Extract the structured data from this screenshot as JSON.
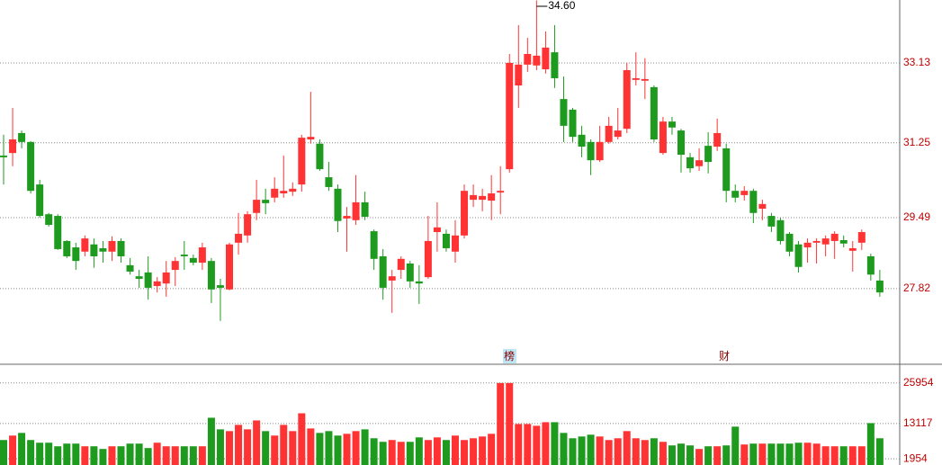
{
  "chart_data": [
    {
      "type": "candlestick",
      "up_color": "#ff3333",
      "down_color": "#1e9b1e",
      "ylim": [
        26.04,
        34.61
      ],
      "yticks": [
        27.82,
        29.49,
        31.25,
        33.13
      ],
      "grid": true,
      "annotations": [
        "34.60",
        "榜",
        "财"
      ],
      "open": [
        30.95,
        31.01,
        31.48,
        31.27,
        30.27,
        29.57,
        29.53,
        28.94,
        28.79,
        28.69,
        28.86,
        28.77,
        28.69,
        28.94,
        28.37,
        28.11,
        28.2,
        27.88,
        27.94,
        28.26,
        28.62,
        28.54,
        28.43,
        28.47,
        27.9,
        27.8,
        28.9,
        29.07,
        29.6,
        29.91,
        29.96,
        30.06,
        30.1,
        30.27,
        31.33,
        31.23,
        30.44,
        30.17,
        29.47,
        29.43,
        29.85,
        29.17,
        28.58,
        28.01,
        28.26,
        28.41,
        27.99,
        28.09,
        29.15,
        29.11,
        28.69,
        29.07,
        29.91,
        29.91,
        29.89,
        30.08,
        30.63,
        32.6,
        33.09,
        33.07,
        32.98,
        33.38,
        32.28,
        32.03,
        31.44,
        31.27,
        30.84,
        31.27,
        31.39,
        31.58,
        32.73,
        32.71,
        32.56,
        31.01,
        31.75,
        31.54,
        30.91,
        30.7,
        31.18,
        31.16,
        31.12,
        30.12,
        30.02,
        30.12,
        29.7,
        29.53,
        29.43,
        29.11,
        28.86,
        28.79,
        28.9,
        28.86,
        28.94,
        28.96,
        28.71,
        28.9,
        28.58,
        28.01
      ],
      "high": [
        31.44,
        32.07,
        31.54,
        31.29,
        30.38,
        29.6,
        29.57,
        28.96,
        28.9,
        29.07,
        29.0,
        28.94,
        29.05,
        29.0,
        28.54,
        28.26,
        28.58,
        28.09,
        28.47,
        28.56,
        28.94,
        28.62,
        28.9,
        28.54,
        28.05,
        28.9,
        29.6,
        29.64,
        30.38,
        30.17,
        30.44,
        30.95,
        30.32,
        31.44,
        32.45,
        31.33,
        30.8,
        30.27,
        29.74,
        30.49,
        30.1,
        29.21,
        28.75,
        28.26,
        28.58,
        28.47,
        28.37,
        29.53,
        29.85,
        29.21,
        29.43,
        30.27,
        30.27,
        30.17,
        30.49,
        30.7,
        33.34,
        34.02,
        33.72,
        34.6,
        33.87,
        34.02,
        32.81,
        32.07,
        31.65,
        31.33,
        31.65,
        31.86,
        32.07,
        33.13,
        33.38,
        33.24,
        32.6,
        31.86,
        31.86,
        31.58,
        31.01,
        31.12,
        31.5,
        31.82,
        31.23,
        30.27,
        30.23,
        30.17,
        29.91,
        29.6,
        29.49,
        29.15,
        28.94,
        29.0,
        29.0,
        29.07,
        29.17,
        29.07,
        28.94,
        29.21,
        28.64,
        28.26
      ],
      "low": [
        30.27,
        30.7,
        31.12,
        30.06,
        29.49,
        29.28,
        28.73,
        28.54,
        28.26,
        28.58,
        28.31,
        28.43,
        28.47,
        28.43,
        28.15,
        27.84,
        27.56,
        27.73,
        27.63,
        27.88,
        28.26,
        28.37,
        28.26,
        27.48,
        27.06,
        27.78,
        28.62,
        28.9,
        29.43,
        29.57,
        29.85,
        29.96,
        30.0,
        30.1,
        31.23,
        30.59,
        30.12,
        29.15,
        28.69,
        29.32,
        29.43,
        28.26,
        27.56,
        27.25,
        28.05,
        27.84,
        27.46,
        28.05,
        28.69,
        28.69,
        28.43,
        29.0,
        29.74,
        29.64,
        29.43,
        29.57,
        30.55,
        32.07,
        32.92,
        32.96,
        32.88,
        32.54,
        31.27,
        31.27,
        30.91,
        30.49,
        30.8,
        31.23,
        31.33,
        31.48,
        32.6,
        32.28,
        31.27,
        30.97,
        31.44,
        30.55,
        30.55,
        30.59,
        30.53,
        31.06,
        29.85,
        29.85,
        29.89,
        29.36,
        29.43,
        29.15,
        28.86,
        28.58,
        28.2,
        28.43,
        28.41,
        28.58,
        28.52,
        28.79,
        28.22,
        28.73,
        28.01,
        27.63
      ],
      "close": [
        30.91,
        31.33,
        31.27,
        30.12,
        29.53,
        29.32,
        28.75,
        28.58,
        28.47,
        29.0,
        28.58,
        28.69,
        28.94,
        28.58,
        28.22,
        28.05,
        27.84,
        27.99,
        28.2,
        28.47,
        28.58,
        28.43,
        28.79,
        27.8,
        27.84,
        28.86,
        29.11,
        29.57,
        29.91,
        29.83,
        30.17,
        30.12,
        30.17,
        31.37,
        31.39,
        30.63,
        30.21,
        29.41,
        29.53,
        29.85,
        29.51,
        28.52,
        27.84,
        28.11,
        28.52,
        27.99,
        27.94,
        28.94,
        29.26,
        28.77,
        29.07,
        30.12,
        30.02,
        30.0,
        30.06,
        30.12,
        33.13,
        33.09,
        33.34,
        33.3,
        33.49,
        32.77,
        31.65,
        31.39,
        31.16,
        30.84,
        31.27,
        31.65,
        31.54,
        32.96,
        32.77,
        32.75,
        31.33,
        31.75,
        31.61,
        30.97,
        30.65,
        30.84,
        30.8,
        31.48,
        30.12,
        29.96,
        30.12,
        29.6,
        29.81,
        29.28,
        28.94,
        28.69,
        28.33,
        28.9,
        28.94,
        29.0,
        29.11,
        28.88,
        28.77,
        29.15,
        28.15,
        27.73
      ]
    },
    {
      "type": "bar",
      "ylim": [
        0,
        31870
      ],
      "yticks": [
        1954,
        13117,
        25954
      ],
      "grid": true,
      "values": [
        7900,
        9310,
        10150,
        7900,
        7050,
        7050,
        5920,
        6770,
        6770,
        5920,
        5920,
        5080,
        5920,
        5920,
        6770,
        6770,
        5360,
        7050,
        5920,
        5920,
        5920,
        5920,
        5920,
        14950,
        11280,
        10720,
        12690,
        11280,
        14100,
        10720,
        9310,
        12690,
        10720,
        16360,
        11560,
        10150,
        10720,
        9310,
        9870,
        10720,
        11280,
        8460,
        7330,
        7900,
        7330,
        7330,
        8740,
        7900,
        8740,
        7900,
        9310,
        7900,
        8460,
        9020,
        9870,
        25940,
        25940,
        12970,
        12970,
        12410,
        13540,
        13540,
        10150,
        8460,
        9020,
        9590,
        9020,
        7900,
        8460,
        10720,
        8460,
        7900,
        8460,
        7330,
        6200,
        6770,
        6200,
        5080,
        5920,
        5920,
        6200,
        12130,
        6490,
        6770,
        6770,
        6770,
        6770,
        6770,
        7050,
        7050,
        6770,
        5920,
        5920,
        5920,
        5920,
        5920,
        13250,
        8460
      ]
    }
  ]
}
